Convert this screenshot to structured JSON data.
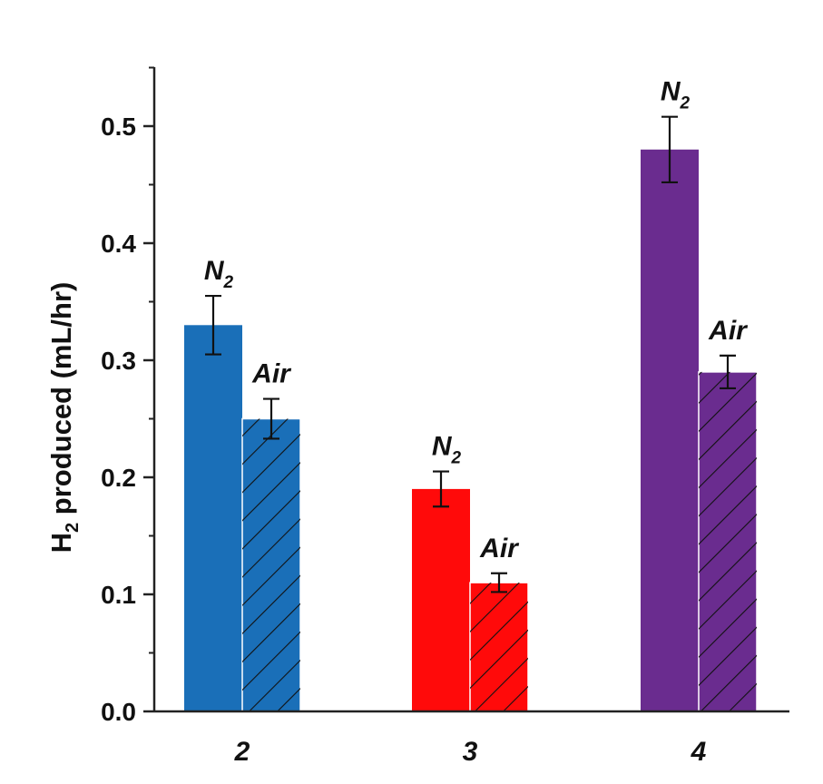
{
  "chart_data": {
    "type": "bar",
    "categories": [
      "2",
      "3",
      "4"
    ],
    "series": [
      {
        "name": "N2",
        "label_main": "N",
        "label_sub": "2",
        "values": [
          0.33,
          0.19,
          0.48
        ],
        "errors": [
          0.025,
          0.015,
          0.028
        ]
      },
      {
        "name": "Air",
        "label_main": "Air",
        "label_sub": "",
        "values": [
          0.25,
          0.11,
          0.29
        ],
        "errors": [
          0.017,
          0.008,
          0.014
        ],
        "pattern": "hatched"
      }
    ],
    "category_colors": [
      "#1a6fb8",
      "#ff0a0a",
      "#6a2c8f"
    ],
    "xlabel": "",
    "ylabel_main": "H",
    "ylabel_sub": "2",
    "ylabel_rest": " produced (mL/hr)",
    "ylim": [
      0,
      0.55
    ],
    "yticks": [
      "0.0",
      "0.1",
      "0.2",
      "0.3",
      "0.4",
      "0.5"
    ],
    "grid": false,
    "legend": "none"
  }
}
